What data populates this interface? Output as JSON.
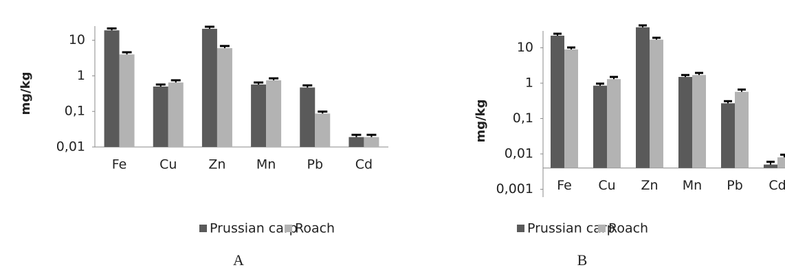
{
  "chart_data": [
    {
      "type": "bar",
      "panel_label": "A",
      "y_label": "mg/kg",
      "log_y": true,
      "categories": [
        "Fe",
        "Cu",
        "Zn",
        "Mn",
        "Pb",
        "Cd"
      ],
      "series": [
        {
          "name": "Prussian carp",
          "color": "#5a5a5a",
          "values": [
            19,
            0.5,
            21,
            0.57,
            0.47,
            0.019
          ],
          "errors": [
            2.5,
            0.07,
            3,
            0.08,
            0.07,
            0.003
          ]
        },
        {
          "name": "Roach",
          "color": "#b3b3b3",
          "values": [
            4,
            0.65,
            6,
            0.75,
            0.087,
            0.019
          ],
          "errors": [
            0.6,
            0.1,
            0.9,
            0.1,
            0.012,
            0.003
          ]
        }
      ],
      "ylim": [
        0.01,
        25
      ],
      "yticks": [
        {
          "value": 0.01,
          "label": "0,01"
        },
        {
          "value": 0.1,
          "label": "0,1"
        },
        1,
        10
      ],
      "legend": "bottom"
    },
    {
      "type": "bar",
      "panel_label": "B",
      "y_label": "mg/kg",
      "log_y": true,
      "categories": [
        "Fe",
        "Cu",
        "Zn",
        "Mn",
        "Pb",
        "Cd"
      ],
      "series": [
        {
          "name": "Prussian carp",
          "color": "#5a5a5a",
          "values": [
            22,
            0.85,
            38,
            1.5,
            0.27,
            0.005
          ],
          "errors": [
            3,
            0.12,
            5,
            0.2,
            0.04,
            0.001
          ]
        },
        {
          "name": "Roach",
          "color": "#b3b3b3",
          "values": [
            9,
            1.3,
            17,
            1.7,
            0.57,
            0.008
          ],
          "errors": [
            1.2,
            0.2,
            2.2,
            0.25,
            0.09,
            0.0015
          ]
        }
      ],
      "ylim": [
        0.0006,
        30
      ],
      "x_axis_crosses": 0.004,
      "yticks": [
        {
          "value": 0.001,
          "label": "0,001"
        },
        {
          "value": 0.01,
          "label": "0,01"
        },
        {
          "value": 0.1,
          "label": "0,1"
        },
        1,
        10
      ],
      "legend": "bottom"
    }
  ]
}
